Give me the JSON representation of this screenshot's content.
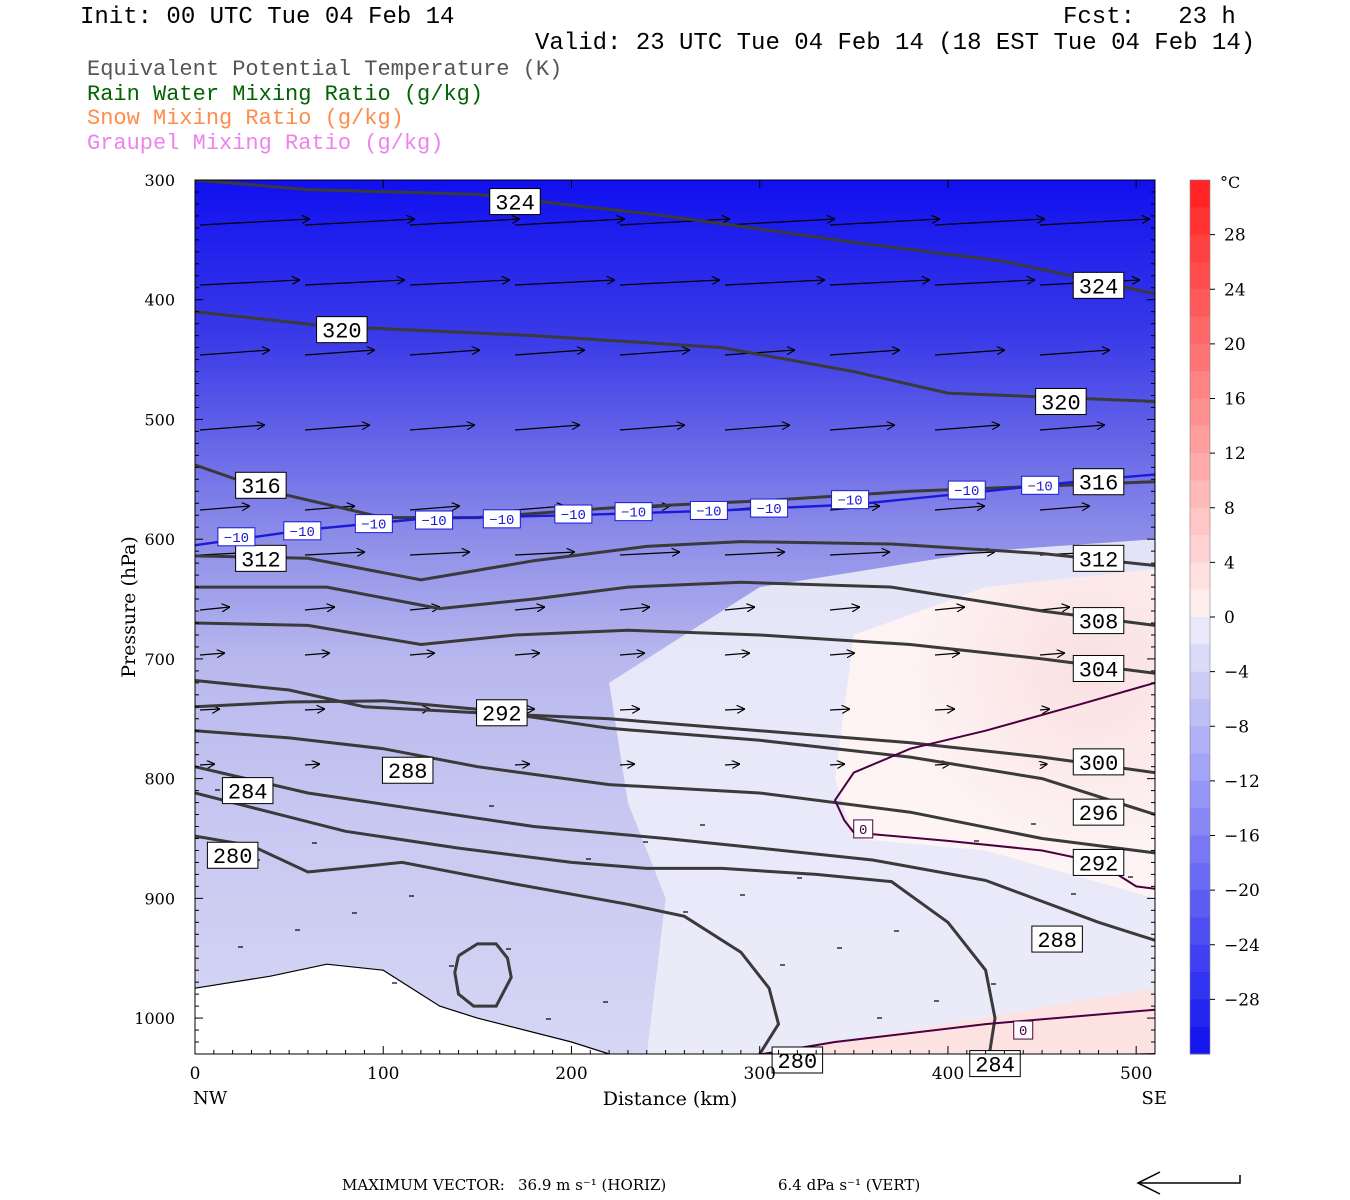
{
  "header": {
    "init": "Init: 00 UTC Tue 04 Feb 14",
    "fcst": "Fcst:   23 h",
    "valid": "Valid: 23 UTC Tue 04 Feb 14 (18 EST Tue 04 Feb 14)"
  },
  "legend": [
    {
      "text": "Equivalent Potential Temperature (K)",
      "color": "#555555"
    },
    {
      "text": "Rain Water Mixing Ratio (g/kg)",
      "color": "#006400"
    },
    {
      "text": "Snow Mixing Ratio (g/kg)",
      "color": "#ff8c4a"
    },
    {
      "text": "Graupel Mixing Ratio (g/kg)",
      "color": "#ee82ee"
    }
  ],
  "chart_data": {
    "type": "cross-section",
    "xlabel": "Distance (km)",
    "ylabel": "Pressure (hPa)",
    "xlim": [
      0,
      510
    ],
    "ylim": [
      1030,
      300
    ],
    "x_ticks": [
      0,
      100,
      200,
      300,
      400,
      500
    ],
    "y_ticks": [
      300,
      400,
      500,
      600,
      700,
      800,
      900,
      1000
    ],
    "x_end_labels": {
      "left": "NW",
      "right": "SE"
    },
    "colorbar": {
      "unit": "°C",
      "min": -32,
      "max": 32,
      "tick_values": [
        28,
        24,
        20,
        16,
        12,
        8,
        4,
        0,
        -4,
        -8,
        -12,
        -16,
        -20,
        -24,
        -28
      ],
      "tick_labels": [
        "28",
        "24",
        "20",
        "16",
        "12",
        "8",
        "4",
        "0",
        "−4",
        "−8",
        "−12",
        "−16",
        "−20",
        "−24",
        "−28"
      ]
    },
    "theta_e_contours": [
      {
        "value": 324,
        "points": [
          [
            0,
            300
          ],
          [
            60,
            308
          ],
          [
            150,
            312
          ],
          [
            250,
            330
          ],
          [
            350,
            352
          ],
          [
            430,
            368
          ],
          [
            510,
            395
          ]
        ],
        "labels": [
          [
            170,
            318
          ],
          [
            480,
            388
          ]
        ]
      },
      {
        "value": 320,
        "points": [
          [
            0,
            410
          ],
          [
            70,
            422
          ],
          [
            180,
            430
          ],
          [
            280,
            440
          ],
          [
            350,
            460
          ],
          [
            400,
            478
          ],
          [
            510,
            485
          ]
        ],
        "labels": [
          [
            78,
            425
          ],
          [
            460,
            485
          ]
        ]
      },
      {
        "value": 316,
        "points": [
          [
            0,
            538
          ],
          [
            40,
            560
          ],
          [
            100,
            582
          ],
          [
            150,
            582
          ],
          [
            220,
            574
          ],
          [
            300,
            568
          ],
          [
            380,
            560
          ],
          [
            510,
            552
          ]
        ],
        "labels": [
          [
            35,
            555
          ],
          [
            480,
            552
          ]
        ]
      },
      {
        "value": 312,
        "points": [
          [
            0,
            614
          ],
          [
            60,
            616
          ],
          [
            120,
            634
          ],
          [
            180,
            618
          ],
          [
            240,
            606
          ],
          [
            290,
            602
          ],
          [
            370,
            604
          ],
          [
            450,
            612
          ],
          [
            510,
            622
          ]
        ],
        "labels": [
          [
            35,
            616
          ],
          [
            480,
            616
          ]
        ]
      },
      {
        "value": 308,
        "points": [
          [
            0,
            640
          ],
          [
            70,
            640
          ],
          [
            130,
            658
          ],
          [
            180,
            650
          ],
          [
            230,
            640
          ],
          [
            290,
            636
          ],
          [
            370,
            640
          ],
          [
            450,
            660
          ],
          [
            510,
            672
          ]
        ],
        "labels": [
          [
            480,
            668
          ]
        ]
      },
      {
        "value": 304,
        "points": [
          [
            0,
            670
          ],
          [
            60,
            672
          ],
          [
            120,
            688
          ],
          [
            170,
            680
          ],
          [
            230,
            676
          ],
          [
            300,
            680
          ],
          [
            380,
            688
          ],
          [
            450,
            700
          ],
          [
            510,
            712
          ]
        ],
        "labels": [
          [
            480,
            708
          ]
        ]
      },
      {
        "value": 300,
        "points": [
          [
            0,
            718
          ],
          [
            50,
            726
          ],
          [
            90,
            740
          ],
          [
            150,
            745
          ],
          [
            220,
            750
          ],
          [
            300,
            760
          ],
          [
            380,
            770
          ],
          [
            450,
            782
          ],
          [
            510,
            795
          ]
        ],
        "labels": [
          [
            480,
            786
          ]
        ]
      },
      {
        "value": 296,
        "points": [
          [
            0,
            740
          ],
          [
            50,
            736
          ],
          [
            100,
            735
          ],
          [
            150,
            742
          ],
          [
            220,
            758
          ],
          [
            300,
            768
          ],
          [
            380,
            782
          ],
          [
            450,
            800
          ],
          [
            510,
            830
          ]
        ],
        "labels": [
          [
            480,
            828
          ]
        ]
      },
      {
        "value": 292,
        "points": [
          [
            0,
            760
          ],
          [
            50,
            766
          ],
          [
            100,
            775
          ],
          [
            150,
            790
          ],
          [
            220,
            805
          ],
          [
            300,
            812
          ],
          [
            380,
            828
          ],
          [
            450,
            850
          ],
          [
            510,
            862
          ]
        ],
        "labels": [
          [
            163,
            745
          ],
          [
            480,
            870
          ]
        ]
      },
      {
        "value": 288,
        "points": [
          [
            0,
            790
          ],
          [
            60,
            812
          ],
          [
            120,
            826
          ],
          [
            180,
            840
          ],
          [
            250,
            850
          ],
          [
            300,
            858
          ],
          [
            360,
            868
          ],
          [
            420,
            885
          ],
          [
            480,
            920
          ],
          [
            510,
            935
          ]
        ],
        "labels": [
          [
            113,
            793
          ],
          [
            458,
            934
          ]
        ]
      },
      {
        "value": 284,
        "points": [
          [
            0,
            812
          ],
          [
            40,
            828
          ],
          [
            80,
            844
          ],
          [
            140,
            858
          ],
          [
            200,
            870
          ],
          [
            240,
            875
          ],
          [
            280,
            875
          ],
          [
            330,
            880
          ],
          [
            370,
            886
          ],
          [
            400,
            920
          ],
          [
            420,
            960
          ],
          [
            425,
            1000
          ],
          [
            422,
            1030
          ]
        ],
        "labels": [
          [
            28,
            810
          ],
          [
            425,
            1038
          ]
        ]
      },
      {
        "value": 280,
        "points": [
          [
            0,
            848
          ],
          [
            30,
            856
          ],
          [
            60,
            878
          ],
          [
            110,
            870
          ],
          [
            170,
            888
          ],
          [
            230,
            905
          ],
          [
            260,
            915
          ],
          [
            290,
            945
          ],
          [
            305,
            975
          ],
          [
            310,
            1005
          ],
          [
            300,
            1030
          ]
        ],
        "labels": [
          [
            20,
            864
          ],
          [
            320,
            1035
          ]
        ]
      },
      {
        "value": 280,
        "points": [
          [
            140,
            948
          ],
          [
            150,
            938
          ],
          [
            160,
            938
          ],
          [
            166,
            950
          ],
          [
            168,
            966
          ],
          [
            160,
            990
          ],
          [
            148,
            990
          ],
          [
            140,
            980
          ],
          [
            138,
            962
          ],
          [
            140,
            948
          ]
        ],
        "labels": []
      }
    ],
    "isotherms": [
      {
        "value": -10,
        "points": [
          [
            0,
            605
          ],
          [
            60,
            592
          ],
          [
            120,
            583
          ],
          [
            200,
            580
          ],
          [
            280,
            576
          ],
          [
            350,
            571
          ],
          [
            420,
            560
          ],
          [
            480,
            550
          ],
          [
            510,
            546
          ]
        ],
        "labels": [
          [
            22,
            598
          ],
          [
            57,
            593
          ],
          [
            95,
            587
          ],
          [
            127,
            584
          ],
          [
            163,
            583
          ],
          [
            201,
            579
          ],
          [
            233,
            577
          ],
          [
            273,
            576
          ],
          [
            305,
            574
          ],
          [
            348,
            567
          ],
          [
            410,
            559
          ],
          [
            449,
            555
          ]
        ]
      },
      {
        "value": 0,
        "points": [
          [
            510,
            1030
          ],
          [
            380,
            1035
          ],
          [
            330,
            1040
          ],
          [
            290,
            1033
          ],
          [
            340,
            1020
          ],
          [
            420,
            1005
          ],
          [
            510,
            993
          ]
        ],
        "labels": [
          [
            440,
            1010
          ]
        ]
      },
      {
        "value": 0,
        "points": [
          [
            510,
            720
          ],
          [
            470,
            738
          ],
          [
            420,
            760
          ],
          [
            380,
            775
          ],
          [
            350,
            795
          ],
          [
            340,
            818
          ],
          [
            345,
            835
          ],
          [
            350,
            845
          ],
          [
            400,
            852
          ],
          [
            450,
            860
          ],
          [
            480,
            870
          ],
          [
            500,
            890
          ],
          [
            510,
            892
          ]
        ],
        "labels": [
          [
            355,
            842
          ]
        ]
      }
    ],
    "wind_vectors": {
      "max_horizontal": "36.9 m s⁻¹ (HORIZ)",
      "max_vertical": "6.4 dPa s⁻¹ (VERT)",
      "label": "MAXIMUM VECTOR:"
    }
  }
}
